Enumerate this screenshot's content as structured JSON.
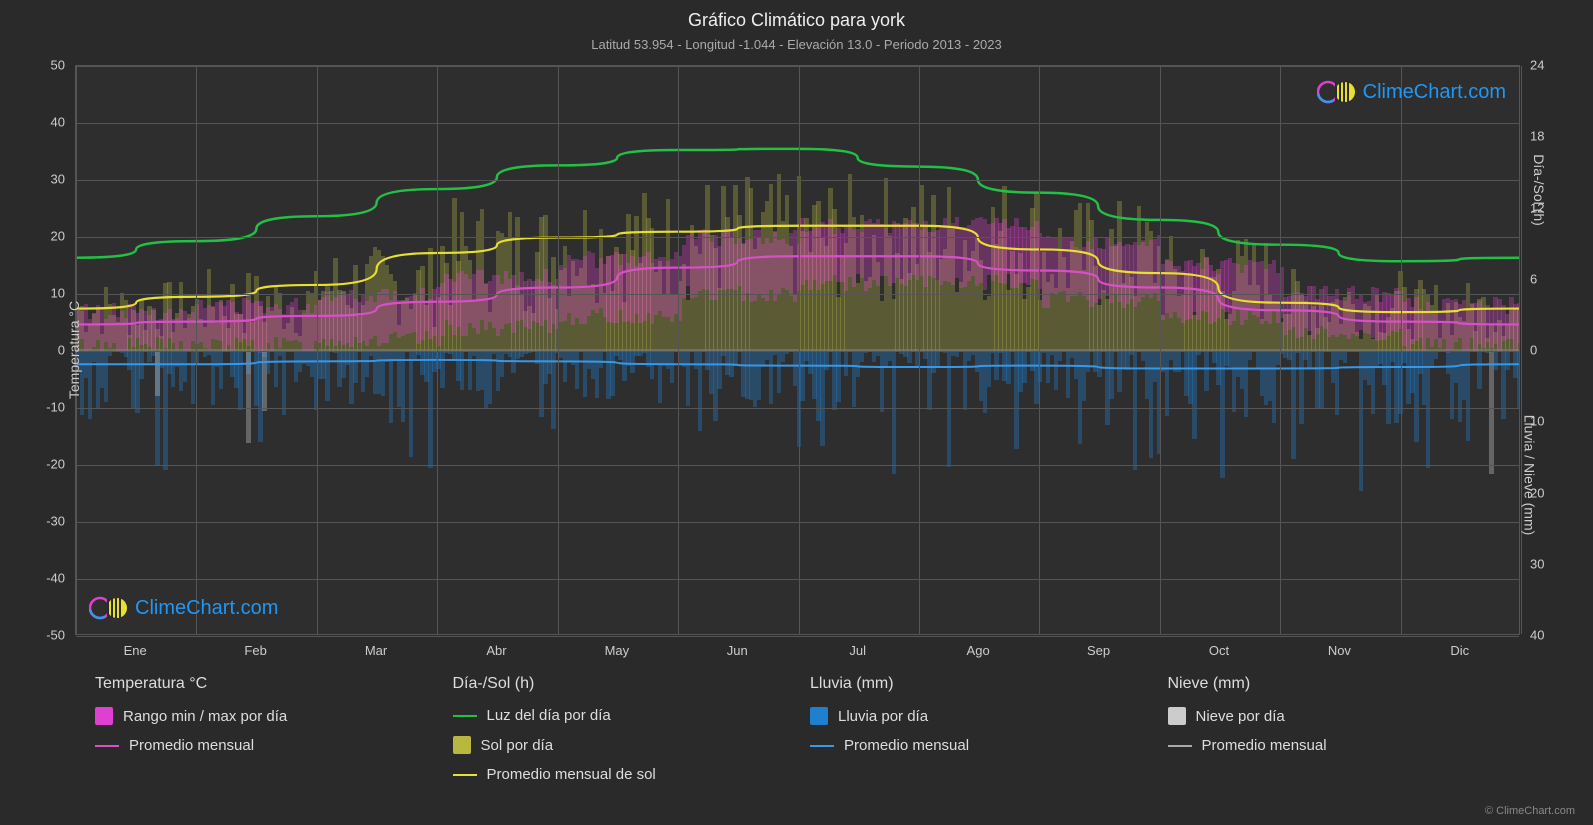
{
  "title": "Gráfico Climático para york",
  "subtitle": "Latitud 53.954 - Longitud -1.044 - Elevación 13.0 - Periodo 2013 - 2023",
  "brand": "ClimeChart.com",
  "copyright": "© ClimeChart.com",
  "colors": {
    "bg": "#2a2a2a",
    "plot_bg": "#2e2e2e",
    "grid": "#555555",
    "text": "#dddddd",
    "daylight": "#22c045",
    "sun_avg": "#e8e030",
    "sun_bar": "#b8b840",
    "temp_range": "#e040d0",
    "temp_avg": "#d850c8",
    "rain_bar": "#2080d0",
    "rain_avg": "#3898e8",
    "snow_bar": "#cccccc",
    "snow_avg": "#aaaaaa",
    "brand_blue": "#2196f3"
  },
  "axes": {
    "left_label": "Temperatura °C",
    "right_label_top": "Día-/Sol (h)",
    "right_label_bottom": "Lluvia / Nieve (mm)",
    "y_left": {
      "min": -50,
      "max": 50,
      "step": 10
    },
    "y_right_top": {
      "min": 0,
      "max": 24,
      "step": 6
    },
    "y_right_bottom": {
      "min": 0,
      "max": 40,
      "step": 10
    },
    "months": [
      "Ene",
      "Feb",
      "Mar",
      "Abr",
      "May",
      "Jun",
      "Jul",
      "Ago",
      "Sep",
      "Oct",
      "Nov",
      "Dic"
    ]
  },
  "lines": {
    "daylight": [
      7.8,
      9.2,
      11.3,
      13.6,
      15.6,
      16.9,
      17.0,
      15.5,
      13.3,
      11.0,
      8.9,
      7.5,
      7.8
    ],
    "sun_avg": [
      3.5,
      4.5,
      5.5,
      8.2,
      9.5,
      10.0,
      10.5,
      10.5,
      8.5,
      6.5,
      4.0,
      3.2,
      3.5
    ],
    "temp_avg": [
      4.5,
      5.0,
      6.0,
      8.5,
      11.0,
      14.5,
      16.5,
      16.5,
      14.0,
      11.0,
      7.0,
      5.0,
      4.5
    ],
    "rain_avg_mm": [
      2.0,
      2.0,
      1.6,
      1.4,
      1.6,
      2.0,
      2.2,
      2.4,
      2.2,
      2.6,
      2.6,
      2.4,
      2.0
    ]
  },
  "temp_range_month": {
    "min": [
      1,
      1,
      2,
      4,
      6,
      10,
      12,
      12,
      9,
      6,
      3,
      1
    ],
    "max": [
      7,
      8,
      10,
      13,
      16,
      20,
      22,
      22,
      19,
      15,
      10,
      8
    ]
  },
  "sun_band_month": {
    "min": [
      1,
      1,
      2,
      3,
      4,
      4,
      4,
      4,
      3,
      2,
      1,
      1
    ],
    "max": [
      6,
      7,
      9,
      13,
      14,
      15,
      15,
      15,
      13,
      10,
      7,
      6
    ]
  },
  "rain_band_month_mm": {
    "min": [
      0,
      0,
      0,
      0,
      0,
      0,
      0,
      0,
      0,
      0,
      0,
      0
    ],
    "max": [
      10,
      9,
      8,
      6,
      7,
      8,
      9,
      9,
      8,
      10,
      11,
      10
    ]
  },
  "legend": {
    "cols": [
      {
        "title": "Temperatura °C",
        "items": [
          {
            "kind": "swatch",
            "color": "#e040d0",
            "label": "Rango min / max por día"
          },
          {
            "kind": "line",
            "color": "#d850c8",
            "label": "Promedio mensual"
          }
        ]
      },
      {
        "title": "Día-/Sol (h)",
        "items": [
          {
            "kind": "line",
            "color": "#22c045",
            "label": "Luz del día por día"
          },
          {
            "kind": "swatch",
            "color": "#b8b840",
            "label": "Sol por día"
          },
          {
            "kind": "line",
            "color": "#e8e030",
            "label": "Promedio mensual de sol"
          }
        ]
      },
      {
        "title": "Lluvia (mm)",
        "items": [
          {
            "kind": "swatch",
            "color": "#2080d0",
            "label": "Lluvia por día"
          },
          {
            "kind": "line",
            "color": "#3898e8",
            "label": "Promedio mensual"
          }
        ]
      },
      {
        "title": "Nieve (mm)",
        "items": [
          {
            "kind": "swatch",
            "color": "#cccccc",
            "label": "Nieve por día"
          },
          {
            "kind": "line",
            "color": "#aaaaaa",
            "label": "Promedio mensual"
          }
        ]
      }
    ]
  }
}
